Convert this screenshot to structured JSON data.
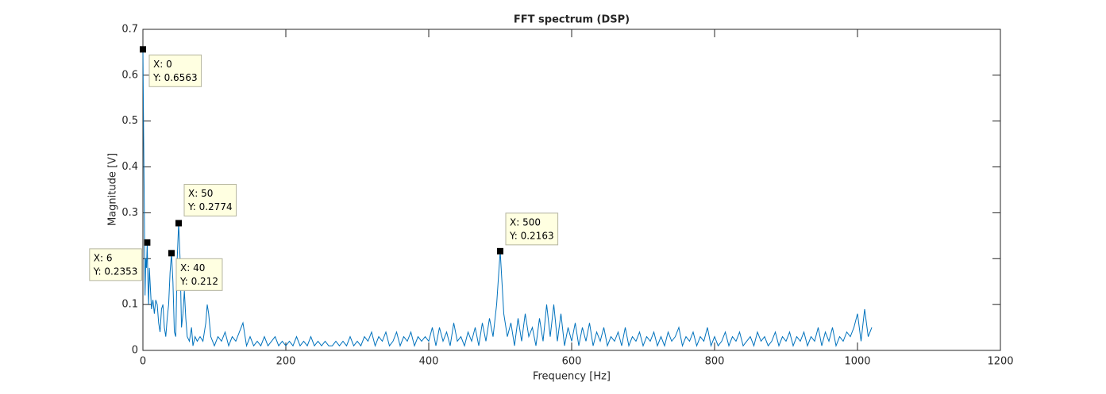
{
  "chart_data": {
    "type": "line",
    "title": "FFT spectrum (DSP)",
    "x_label": "Frequency [Hz]",
    "y_label": "Magnitude [V]",
    "xlim": [
      0,
      1200
    ],
    "xticks": [
      0,
      200,
      400,
      600,
      800,
      1000,
      1200
    ],
    "ylim": [
      0,
      0.7
    ],
    "yticks": [
      0,
      0.1,
      0.2,
      0.3,
      0.4,
      0.5,
      0.6,
      0.7
    ],
    "grid": false,
    "x": [
      0,
      1,
      2,
      3,
      4,
      5,
      6,
      7,
      8,
      9,
      10,
      12,
      14,
      16,
      18,
      20,
      22,
      24,
      26,
      28,
      30,
      32,
      34,
      36,
      38,
      40,
      42,
      44,
      46,
      48,
      50,
      52,
      54,
      56,
      58,
      60,
      62,
      65,
      68,
      70,
      73,
      76,
      80,
      84,
      88,
      90,
      92,
      95,
      100,
      105,
      110,
      115,
      120,
      125,
      130,
      135,
      140,
      145,
      150,
      155,
      160,
      165,
      170,
      175,
      180,
      185,
      190,
      195,
      200,
      205,
      210,
      215,
      220,
      225,
      230,
      235,
      240,
      245,
      250,
      255,
      260,
      265,
      270,
      275,
      280,
      285,
      290,
      295,
      300,
      305,
      310,
      315,
      320,
      325,
      330,
      335,
      340,
      345,
      350,
      355,
      360,
      365,
      370,
      375,
      380,
      385,
      390,
      395,
      400,
      405,
      410,
      415,
      420,
      425,
      430,
      435,
      440,
      445,
      450,
      455,
      460,
      465,
      470,
      475,
      480,
      485,
      490,
      495,
      500,
      505,
      510,
      515,
      520,
      525,
      530,
      535,
      540,
      545,
      550,
      555,
      560,
      565,
      570,
      575,
      580,
      585,
      590,
      595,
      600,
      605,
      610,
      615,
      620,
      625,
      630,
      635,
      640,
      645,
      650,
      655,
      660,
      665,
      670,
      675,
      680,
      685,
      690,
      695,
      700,
      705,
      710,
      715,
      720,
      725,
      730,
      735,
      740,
      745,
      750,
      755,
      760,
      765,
      770,
      775,
      780,
      785,
      790,
      795,
      800,
      805,
      810,
      815,
      820,
      825,
      830,
      835,
      840,
      845,
      850,
      855,
      860,
      865,
      870,
      875,
      880,
      885,
      890,
      895,
      900,
      905,
      910,
      915,
      920,
      925,
      930,
      935,
      940,
      945,
      950,
      955,
      960,
      965,
      970,
      975,
      980,
      985,
      990,
      995,
      1000,
      1005,
      1010,
      1015,
      1020
    ],
    "series": [
      {
        "color": "#0072bd",
        "values": [
          0.6563,
          0.47,
          0.3,
          0.12,
          0.2,
          0.18,
          0.2353,
          0.15,
          0.1,
          0.18,
          0.15,
          0.09,
          0.11,
          0.08,
          0.11,
          0.1,
          0.06,
          0.04,
          0.09,
          0.1,
          0.05,
          0.03,
          0.07,
          0.1,
          0.17,
          0.212,
          0.15,
          0.04,
          0.03,
          0.2,
          0.2774,
          0.2,
          0.05,
          0.08,
          0.13,
          0.07,
          0.03,
          0.02,
          0.05,
          0.01,
          0.03,
          0.02,
          0.03,
          0.02,
          0.06,
          0.1,
          0.08,
          0.03,
          0.01,
          0.03,
          0.02,
          0.04,
          0.01,
          0.03,
          0.02,
          0.04,
          0.06,
          0.01,
          0.03,
          0.01,
          0.02,
          0.01,
          0.03,
          0.01,
          0.02,
          0.03,
          0.01,
          0.02,
          0.01,
          0.02,
          0.01,
          0.03,
          0.01,
          0.02,
          0.01,
          0.03,
          0.01,
          0.02,
          0.01,
          0.02,
          0.01,
          0.01,
          0.02,
          0.01,
          0.02,
          0.01,
          0.03,
          0.01,
          0.02,
          0.01,
          0.03,
          0.02,
          0.04,
          0.01,
          0.03,
          0.02,
          0.04,
          0.01,
          0.02,
          0.04,
          0.01,
          0.03,
          0.02,
          0.04,
          0.01,
          0.03,
          0.02,
          0.03,
          0.02,
          0.05,
          0.01,
          0.05,
          0.02,
          0.04,
          0.01,
          0.06,
          0.02,
          0.03,
          0.01,
          0.04,
          0.02,
          0.05,
          0.01,
          0.06,
          0.02,
          0.07,
          0.03,
          0.1,
          0.2163,
          0.08,
          0.03,
          0.06,
          0.01,
          0.07,
          0.02,
          0.08,
          0.03,
          0.05,
          0.01,
          0.07,
          0.02,
          0.1,
          0.03,
          0.1,
          0.02,
          0.08,
          0.01,
          0.05,
          0.02,
          0.06,
          0.01,
          0.05,
          0.02,
          0.06,
          0.01,
          0.04,
          0.02,
          0.05,
          0.01,
          0.03,
          0.02,
          0.04,
          0.01,
          0.05,
          0.01,
          0.03,
          0.02,
          0.04,
          0.01,
          0.03,
          0.02,
          0.04,
          0.01,
          0.03,
          0.01,
          0.04,
          0.02,
          0.03,
          0.05,
          0.01,
          0.03,
          0.02,
          0.04,
          0.01,
          0.03,
          0.02,
          0.05,
          0.01,
          0.03,
          0.01,
          0.02,
          0.04,
          0.01,
          0.03,
          0.02,
          0.04,
          0.01,
          0.02,
          0.03,
          0.01,
          0.04,
          0.02,
          0.03,
          0.01,
          0.02,
          0.04,
          0.01,
          0.03,
          0.02,
          0.04,
          0.01,
          0.03,
          0.02,
          0.04,
          0.01,
          0.03,
          0.02,
          0.05,
          0.01,
          0.04,
          0.02,
          0.05,
          0.01,
          0.03,
          0.02,
          0.04,
          0.03,
          0.05,
          0.08,
          0.02,
          0.09,
          0.03,
          0.05
        ]
      }
    ],
    "annotations": [
      {
        "x": 0,
        "y": 0.6563,
        "text": [
          "X: 0",
          "Y: 0.6563"
        ]
      },
      {
        "x": 6,
        "y": 0.2353,
        "text": [
          "X: 6",
          "Y: 0.2353"
        ]
      },
      {
        "x": 40,
        "y": 0.212,
        "text": [
          "X: 40",
          "Y: 0.212"
        ]
      },
      {
        "x": 50,
        "y": 0.2774,
        "text": [
          "X: 50",
          "Y: 0.2774"
        ]
      },
      {
        "x": 500,
        "y": 0.2163,
        "text": [
          "X: 500",
          "Y: 0.2163"
        ]
      }
    ]
  }
}
